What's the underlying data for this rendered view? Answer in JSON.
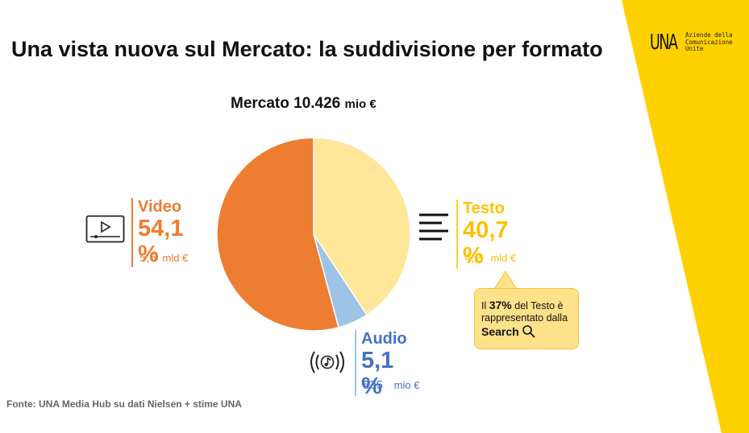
{
  "slide": {
    "title": "Una vista nuova sul Mercato: la suddivisione per formato",
    "market_label": "Mercato 10.426",
    "market_unit": "mio €",
    "source": "Fonte: UNA Media Hub su dati Nielsen + stime UNA"
  },
  "logo": {
    "mark": "UNA",
    "line1": "Aziende della",
    "line2": "Comunicazione",
    "line3": "Unite"
  },
  "segments": {
    "video": {
      "label": "Video",
      "pct": "54,1",
      "pct_sign": "%",
      "value": "5,6",
      "unit": "mld €"
    },
    "testo": {
      "label": "Testo",
      "pct": "40,7",
      "pct_sign": "%",
      "value": "4,2",
      "unit": "mld €"
    },
    "audio": {
      "label": "Audio",
      "pct": "5,1",
      "pct_sign": "%",
      "value": "535",
      "unit": "mio €"
    }
  },
  "callout": {
    "prefix": "Il",
    "pct": "37%",
    "mid": "del Testo è rappresentato dalla",
    "keyword": "Search"
  },
  "colors": {
    "video": "#ED7D31",
    "testo": "#FFE699",
    "audio": "#9DC3E6",
    "accent": "#FFD000"
  },
  "icons": {
    "video": "video-player-icon",
    "testo": "text-lines-icon",
    "audio": "music-note-icon",
    "search": "search-icon"
  },
  "chart_data": {
    "type": "pie",
    "categories": [
      "Testo",
      "Audio",
      "Video"
    ],
    "values": [
      40.7,
      5.1,
      54.1
    ],
    "unit": "%",
    "colors": [
      "#FFE699",
      "#9DC3E6",
      "#ED7D31"
    ],
    "start": "12 o'clock, clockwise"
  }
}
